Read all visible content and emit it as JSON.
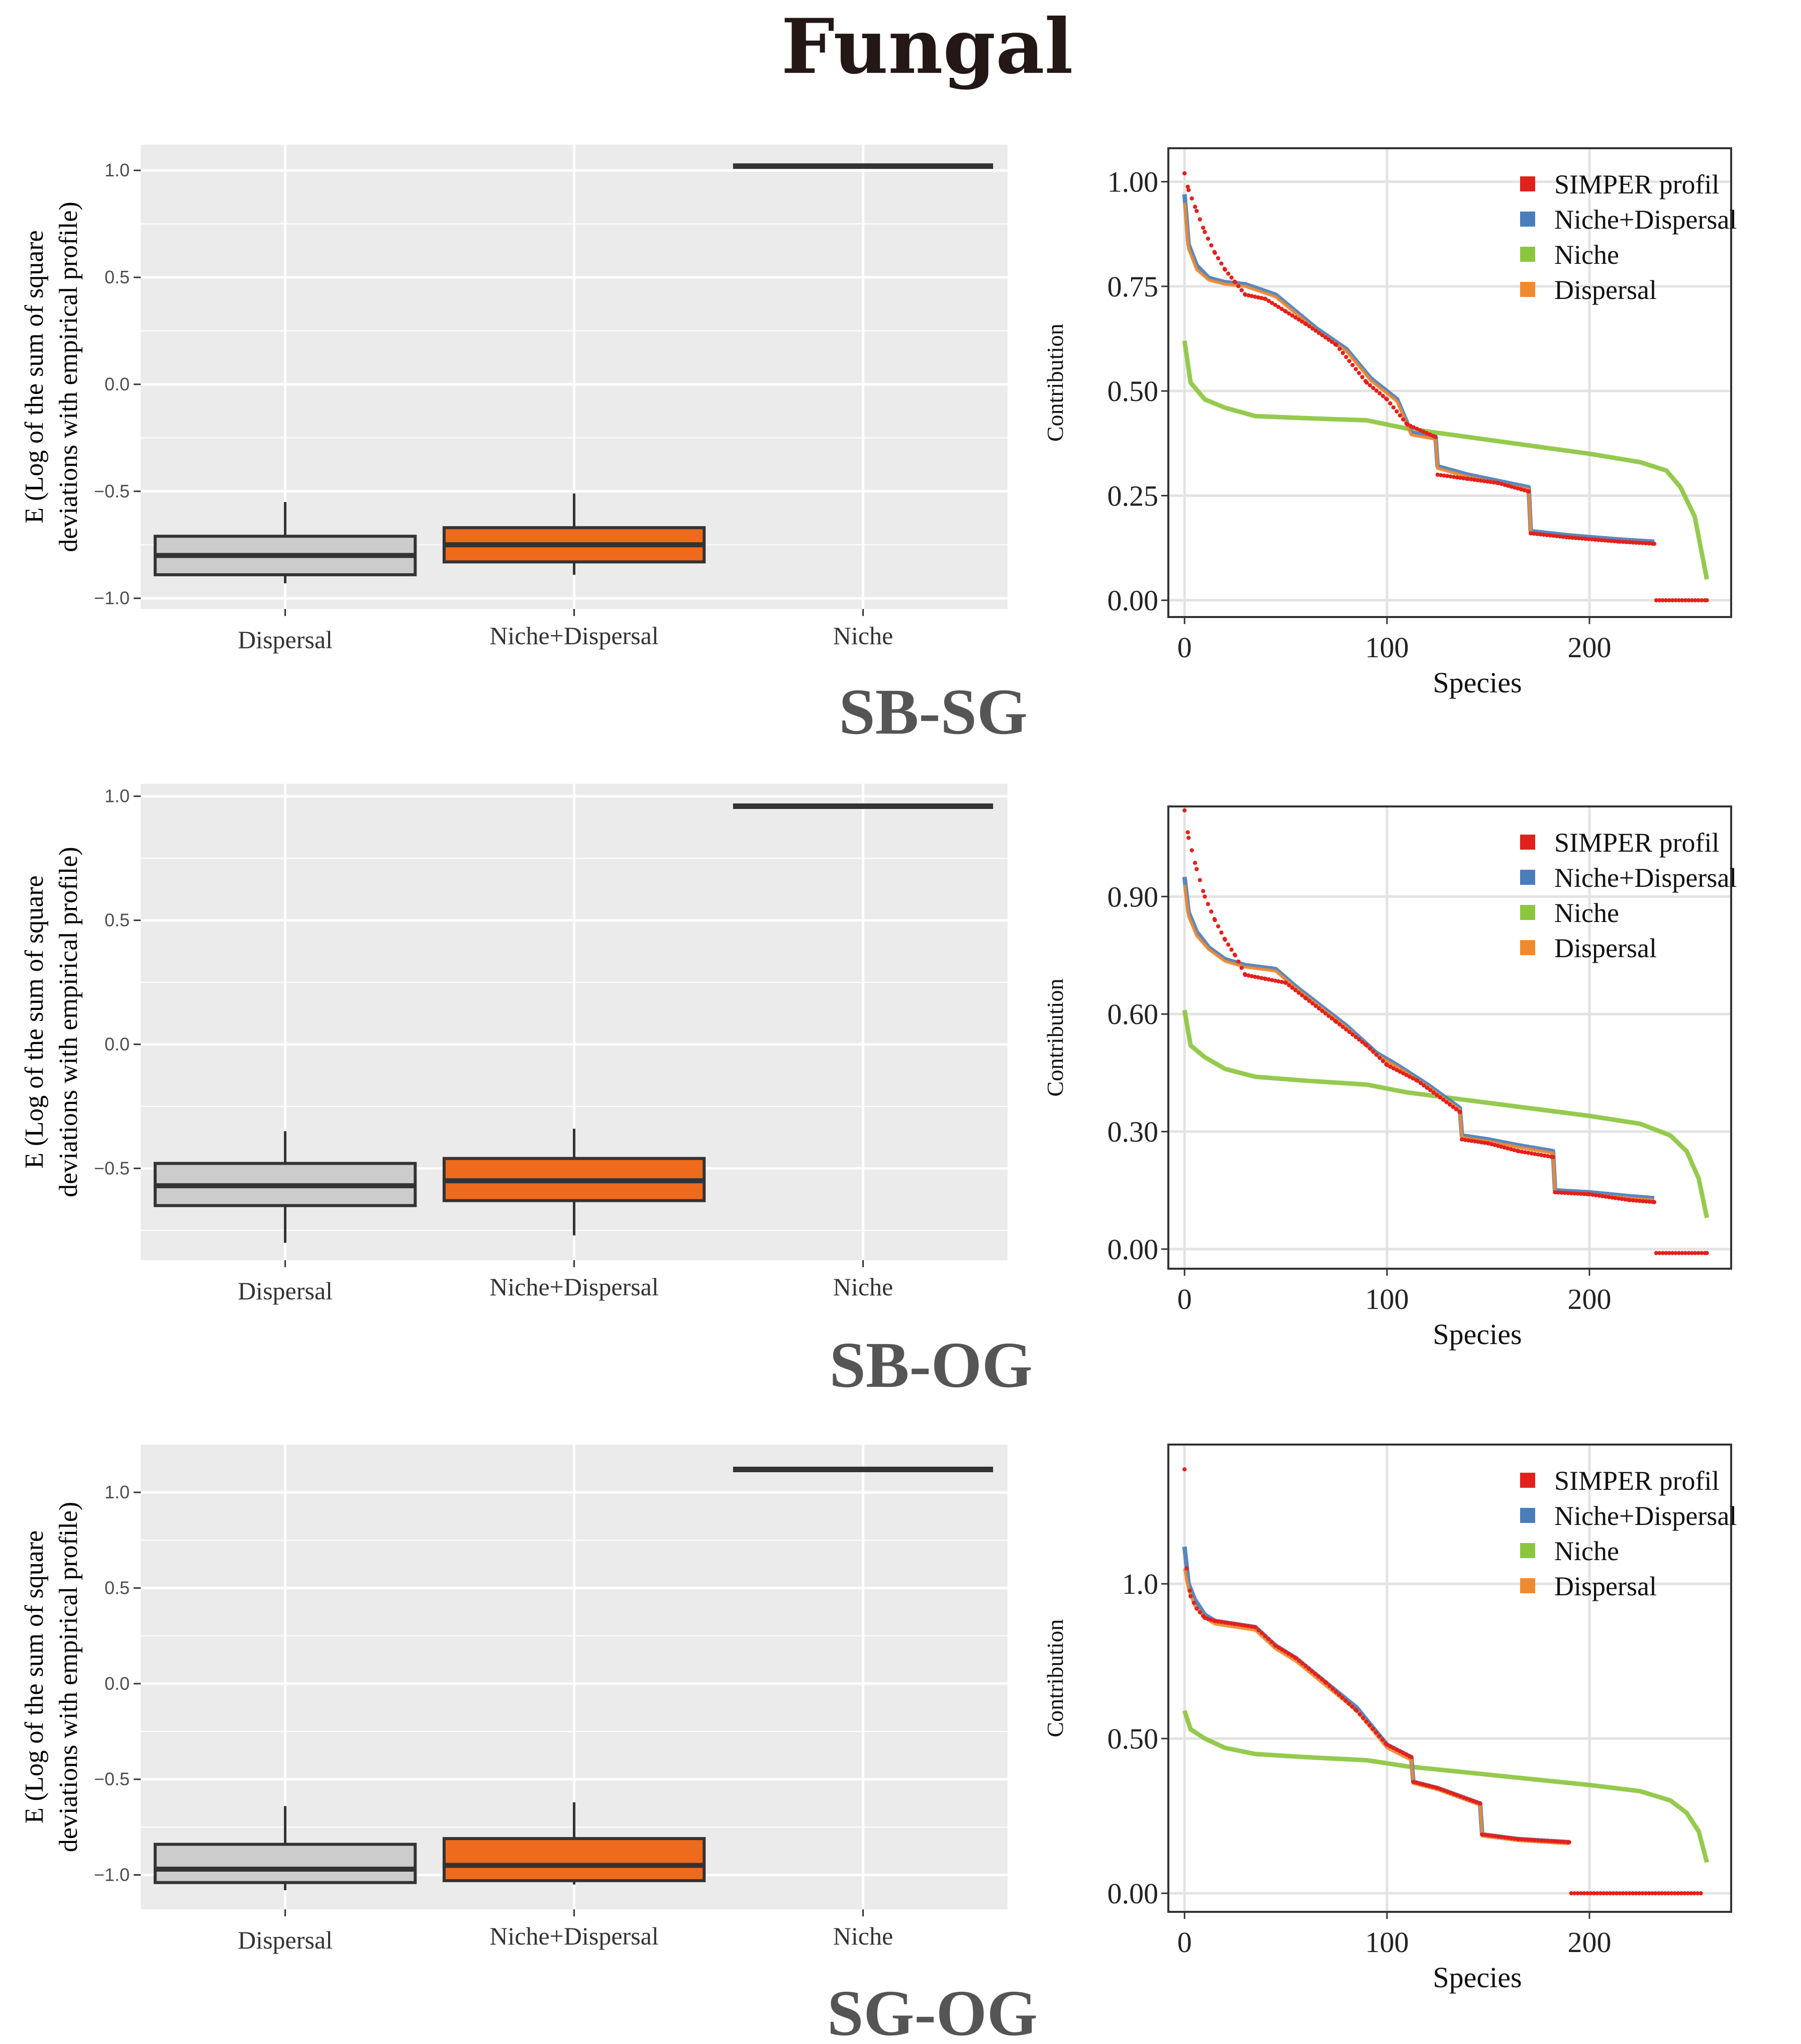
{
  "title": "Fungal",
  "colors": {
    "panel_bg": "#ebebeb",
    "grid": "#ffffff",
    "dispersal_box": "#cccccc",
    "niche_dispersal_box": "#ee6a1c",
    "box_line": "#333333",
    "simper": "#e3211c",
    "niche_dispersal": "#4a7ebb",
    "niche": "#8cc63f",
    "dispersal": "#f08a30"
  },
  "chart_data": [
    {
      "type": "boxplot",
      "panel_label": "SB-SG",
      "ylabel_line1": "E (Log of the sum of square",
      "ylabel_line2": "deviations with empirical profile)",
      "ylim": [
        -1.05,
        1.12
      ],
      "yticks": [
        -1.0,
        -0.5,
        0.0,
        0.5,
        1.0
      ],
      "ytick_labels": [
        "−1.0",
        "−0.5",
        "0.0",
        "0.5",
        "1.0"
      ],
      "categories": [
        "Dispersal",
        "Niche+Dispersal",
        "Niche"
      ],
      "boxes": [
        {
          "name": "Dispersal",
          "whisker_low": -0.93,
          "q1": -0.89,
          "median": -0.8,
          "q3": -0.71,
          "whisker_high": -0.55
        },
        {
          "name": "Niche+Dispersal",
          "whisker_low": -0.89,
          "q1": -0.83,
          "median": -0.75,
          "q3": -0.67,
          "whisker_high": -0.51
        },
        {
          "name": "Niche",
          "whisker_low": 1.02,
          "q1": 1.02,
          "median": 1.02,
          "q3": 1.02,
          "whisker_high": 1.02
        }
      ]
    },
    {
      "type": "line",
      "panel_label": "SB-SG",
      "xlabel": "Species",
      "ylabel": "Contribution",
      "xlim": [
        -8,
        270
      ],
      "ylim": [
        -0.04,
        1.08
      ],
      "xticks": [
        0,
        100,
        200
      ],
      "xtick_labels": [
        "0",
        "100",
        "200"
      ],
      "yticks": [
        0.0,
        0.25,
        0.5,
        0.75,
        1.0
      ],
      "ytick_labels": [
        "0.00",
        "0.25",
        "0.50",
        "0.75",
        "1.00"
      ],
      "legend": [
        "SIMPER profil",
        "Niche+Dispersal",
        "Niche",
        "Dispersal"
      ],
      "series": [
        {
          "name": "Niche",
          "x": [
            0,
            3,
            10,
            20,
            35,
            60,
            90,
            110,
            140,
            170,
            200,
            225,
            238,
            245,
            252,
            258
          ],
          "values": [
            0.62,
            0.52,
            0.48,
            0.46,
            0.44,
            0.435,
            0.43,
            0.41,
            0.39,
            0.37,
            0.35,
            0.33,
            0.31,
            0.27,
            0.2,
            0.05
          ]
        },
        {
          "name": "Niche+Dispersal",
          "x": [
            0,
            2,
            6,
            12,
            20,
            30,
            45,
            55,
            65,
            80,
            92,
            105,
            112,
            124,
            125,
            140,
            155,
            170,
            171,
            190,
            215,
            232
          ],
          "values": [
            0.97,
            0.85,
            0.8,
            0.77,
            0.76,
            0.755,
            0.73,
            0.69,
            0.65,
            0.6,
            0.53,
            0.48,
            0.4,
            0.39,
            0.32,
            0.3,
            0.285,
            0.27,
            0.165,
            0.155,
            0.145,
            0.14
          ]
        },
        {
          "name": "Dispersal",
          "x": [
            0,
            2,
            6,
            12,
            20,
            30,
            45,
            55,
            65,
            80,
            92,
            105,
            112,
            124,
            125,
            140,
            155,
            170,
            171,
            190,
            215,
            232
          ],
          "values": [
            0.95,
            0.84,
            0.79,
            0.765,
            0.755,
            0.75,
            0.725,
            0.685,
            0.645,
            0.595,
            0.525,
            0.475,
            0.395,
            0.385,
            0.315,
            0.295,
            0.28,
            0.265,
            0.16,
            0.15,
            0.14,
            0.135
          ]
        },
        {
          "name": "SIMPER profil",
          "x": [
            0,
            2,
            6,
            10,
            15,
            20,
            25,
            30,
            40,
            50,
            60,
            75,
            90,
            100,
            110,
            124,
            125,
            140,
            155,
            170,
            171,
            190,
            215,
            232,
            233,
            258
          ],
          "values": [
            1.02,
            0.98,
            0.93,
            0.88,
            0.83,
            0.79,
            0.76,
            0.73,
            0.72,
            0.69,
            0.66,
            0.61,
            0.52,
            0.48,
            0.42,
            0.39,
            0.3,
            0.29,
            0.28,
            0.26,
            0.16,
            0.15,
            0.14,
            0.135,
            0.0,
            0.0
          ]
        }
      ]
    },
    {
      "type": "boxplot",
      "panel_label": "SB-OG",
      "ylabel_line1": "E (Log of the sum of square",
      "ylabel_line2": "deviations with empirical profile)",
      "ylim": [
        -0.87,
        1.05
      ],
      "yticks": [
        -0.5,
        0.0,
        0.5,
        1.0
      ],
      "ytick_labels": [
        "−0.5",
        "0.0",
        "0.5",
        "1.0"
      ],
      "categories": [
        "Dispersal",
        "Niche+Dispersal",
        "Niche"
      ],
      "boxes": [
        {
          "name": "Dispersal",
          "whisker_low": -0.8,
          "q1": -0.65,
          "median": -0.57,
          "q3": -0.48,
          "whisker_high": -0.35
        },
        {
          "name": "Niche+Dispersal",
          "whisker_low": -0.77,
          "q1": -0.63,
          "median": -0.55,
          "q3": -0.46,
          "whisker_high": -0.34
        },
        {
          "name": "Niche",
          "whisker_low": 0.96,
          "q1": 0.96,
          "median": 0.96,
          "q3": 0.96,
          "whisker_high": 0.96
        }
      ]
    },
    {
      "type": "line",
      "panel_label": "SB-OG",
      "xlabel": "Species",
      "ylabel": "Contribution",
      "xlim": [
        -8,
        270
      ],
      "ylim": [
        -0.05,
        1.13
      ],
      "xticks": [
        0,
        100,
        200
      ],
      "xtick_labels": [
        "0",
        "100",
        "200"
      ],
      "yticks": [
        0.0,
        0.3,
        0.6,
        0.9
      ],
      "ytick_labels": [
        "0.00",
        "0.30",
        "0.60",
        "0.90"
      ],
      "legend": [
        "SIMPER profil",
        "Niche+Dispersal",
        "Niche",
        "Dispersal"
      ],
      "series": [
        {
          "name": "Niche",
          "x": [
            0,
            3,
            10,
            20,
            35,
            60,
            90,
            110,
            140,
            170,
            200,
            225,
            240,
            248,
            254,
            258
          ],
          "values": [
            0.61,
            0.52,
            0.49,
            0.46,
            0.44,
            0.43,
            0.42,
            0.4,
            0.38,
            0.36,
            0.34,
            0.32,
            0.29,
            0.25,
            0.18,
            0.08
          ]
        },
        {
          "name": "Niche+Dispersal",
          "x": [
            0,
            2,
            6,
            12,
            20,
            30,
            45,
            55,
            65,
            80,
            95,
            105,
            120,
            136,
            137,
            150,
            165,
            182,
            183,
            200,
            220,
            232
          ],
          "values": [
            0.95,
            0.86,
            0.81,
            0.77,
            0.74,
            0.725,
            0.715,
            0.67,
            0.63,
            0.57,
            0.5,
            0.47,
            0.42,
            0.36,
            0.29,
            0.28,
            0.265,
            0.25,
            0.15,
            0.145,
            0.135,
            0.13
          ]
        },
        {
          "name": "Dispersal",
          "x": [
            0,
            2,
            6,
            12,
            20,
            30,
            45,
            55,
            65,
            80,
            95,
            105,
            120,
            136,
            137,
            150,
            165,
            182,
            183,
            200,
            220,
            232
          ],
          "values": [
            0.93,
            0.85,
            0.8,
            0.765,
            0.735,
            0.72,
            0.71,
            0.665,
            0.625,
            0.565,
            0.495,
            0.465,
            0.415,
            0.355,
            0.285,
            0.275,
            0.26,
            0.245,
            0.145,
            0.14,
            0.13,
            0.125
          ]
        },
        {
          "name": "SIMPER profil",
          "x": [
            0,
            2,
            6,
            10,
            15,
            20,
            25,
            30,
            40,
            50,
            60,
            75,
            90,
            100,
            115,
            136,
            137,
            150,
            165,
            182,
            183,
            200,
            220,
            232,
            233,
            258
          ],
          "values": [
            1.12,
            1.05,
            0.97,
            0.9,
            0.84,
            0.79,
            0.75,
            0.7,
            0.69,
            0.68,
            0.64,
            0.58,
            0.52,
            0.47,
            0.43,
            0.35,
            0.28,
            0.27,
            0.25,
            0.235,
            0.145,
            0.14,
            0.125,
            0.12,
            -0.01,
            -0.01
          ]
        }
      ]
    },
    {
      "type": "boxplot",
      "panel_label": "SG-OG",
      "ylabel_line1": "E (Log of the sum of square",
      "ylabel_line2": "deviations with empirical profile)",
      "ylim": [
        -1.18,
        1.25
      ],
      "yticks": [
        -1.0,
        -0.5,
        0.0,
        0.5,
        1.0
      ],
      "ytick_labels": [
        "−1.0",
        "−0.5",
        "0.0",
        "0.5",
        "1.0"
      ],
      "categories": [
        "Dispersal",
        "Niche+Dispersal",
        "Niche"
      ],
      "boxes": [
        {
          "name": "Dispersal",
          "whisker_low": -1.08,
          "q1": -1.04,
          "median": -0.97,
          "q3": -0.84,
          "whisker_high": -0.64
        },
        {
          "name": "Niche+Dispersal",
          "whisker_low": -1.05,
          "q1": -1.03,
          "median": -0.95,
          "q3": -0.81,
          "whisker_high": -0.62
        },
        {
          "name": "Niche",
          "whisker_low": 1.12,
          "q1": 1.12,
          "median": 1.12,
          "q3": 1.12,
          "whisker_high": 1.12
        }
      ]
    },
    {
      "type": "line",
      "panel_label": "SG-OG",
      "xlabel": "Species",
      "ylabel": "Contribution",
      "xlim": [
        -8,
        270
      ],
      "ylim": [
        -0.06,
        1.45
      ],
      "xticks": [
        0,
        100,
        200
      ],
      "xtick_labels": [
        "0",
        "100",
        "200"
      ],
      "yticks": [
        0.0,
        0.5,
        1.0
      ],
      "ytick_labels": [
        "0.00",
        "0.50",
        "1.0"
      ],
      "legend": [
        "SIMPER profil",
        "Niche+Dispersal",
        "Niche",
        "Dispersal"
      ],
      "series": [
        {
          "name": "Niche",
          "x": [
            0,
            3,
            10,
            20,
            35,
            60,
            90,
            110,
            140,
            170,
            200,
            225,
            240,
            248,
            254,
            258
          ],
          "values": [
            0.59,
            0.53,
            0.5,
            0.47,
            0.45,
            0.44,
            0.43,
            0.41,
            0.39,
            0.37,
            0.35,
            0.33,
            0.3,
            0.26,
            0.2,
            0.1
          ]
        },
        {
          "name": "Niche+Dispersal",
          "x": [
            0,
            2,
            5,
            10,
            15,
            25,
            35,
            45,
            55,
            70,
            85,
            100,
            112,
            113,
            125,
            146,
            147,
            165,
            190
          ],
          "values": [
            1.12,
            1.0,
            0.95,
            0.9,
            0.88,
            0.87,
            0.86,
            0.8,
            0.76,
            0.68,
            0.6,
            0.48,
            0.44,
            0.36,
            0.34,
            0.29,
            0.19,
            0.175,
            0.165
          ]
        },
        {
          "name": "Dispersal",
          "x": [
            0,
            2,
            5,
            10,
            15,
            25,
            35,
            45,
            55,
            70,
            85,
            100,
            112,
            113,
            125,
            146,
            147,
            165,
            190
          ],
          "values": [
            1.05,
            0.98,
            0.93,
            0.89,
            0.87,
            0.86,
            0.85,
            0.79,
            0.75,
            0.67,
            0.59,
            0.47,
            0.43,
            0.355,
            0.335,
            0.285,
            0.185,
            0.17,
            0.16
          ]
        },
        {
          "name": "SIMPER profil",
          "x": [
            0,
            1,
            3,
            6,
            10,
            15,
            25,
            35,
            45,
            55,
            70,
            85,
            100,
            112,
            113,
            125,
            146,
            147,
            165,
            190,
            191,
            255
          ],
          "values": [
            1.37,
            1.05,
            0.96,
            0.92,
            0.89,
            0.88,
            0.87,
            0.86,
            0.8,
            0.76,
            0.68,
            0.59,
            0.48,
            0.44,
            0.36,
            0.34,
            0.29,
            0.19,
            0.175,
            0.165,
            0.0,
            0.0
          ]
        }
      ]
    }
  ]
}
